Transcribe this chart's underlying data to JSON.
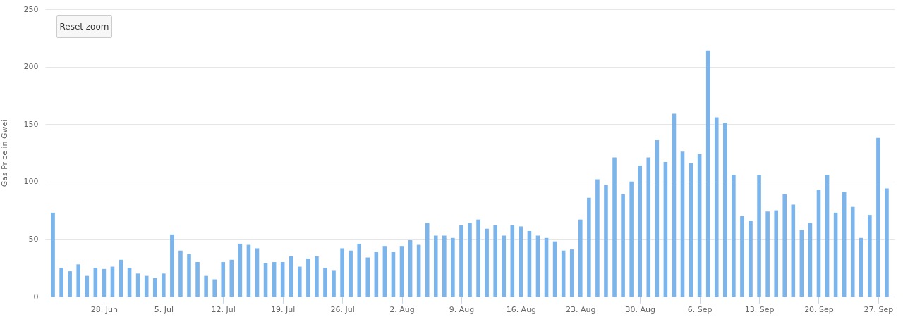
{
  "chart_data": {
    "type": "bar",
    "ylabel": "Gas Price in Gwei",
    "x": [
      "--06-22",
      "--06-23",
      "--06-24",
      "--06-25",
      "--06-26",
      "--06-27",
      "--06-28",
      "--06-29",
      "--06-30",
      "--07-01",
      "--07-02",
      "--07-03",
      "--07-04",
      "--07-05",
      "--07-06",
      "--07-07",
      "--07-08",
      "--07-09",
      "--07-10",
      "--07-11",
      "--07-12",
      "--07-13",
      "--07-14",
      "--07-15",
      "--07-16",
      "--07-17",
      "--07-18",
      "--07-19",
      "--07-20",
      "--07-21",
      "--07-22",
      "--07-23",
      "--07-24",
      "--07-25",
      "--07-26",
      "--07-27",
      "--07-28",
      "--07-29",
      "--07-30",
      "--07-31",
      "--08-01",
      "--08-02",
      "--08-03",
      "--08-04",
      "--08-05",
      "--08-06",
      "--08-07",
      "--08-08",
      "--08-09",
      "--08-10",
      "--08-11",
      "--08-12",
      "--08-13",
      "--08-14",
      "--08-15",
      "--08-16",
      "--08-17",
      "--08-18",
      "--08-19",
      "--08-20",
      "--08-21",
      "--08-22",
      "--08-23",
      "--08-24",
      "--08-25",
      "--08-26",
      "--08-27",
      "--08-28",
      "--08-29",
      "--08-30",
      "--08-31",
      "--09-01",
      "--09-02",
      "--09-03",
      "--09-04",
      "--09-05",
      "--09-06",
      "--09-07",
      "--09-08",
      "--09-09",
      "--09-10",
      "--09-11",
      "--09-12",
      "--09-13",
      "--09-14",
      "--09-15",
      "--09-16",
      "--09-17",
      "--09-18",
      "--09-19",
      "--09-20",
      "--09-21",
      "--09-22",
      "--09-23",
      "--09-24",
      "--09-25",
      "--09-26",
      "--09-27",
      "--09-28"
    ],
    "values": [
      73,
      25,
      22,
      28,
      18,
      25,
      24,
      26,
      32,
      25,
      20,
      18,
      16,
      20,
      54,
      40,
      37,
      30,
      18,
      15,
      30,
      32,
      46,
      45,
      42,
      29,
      30,
      30,
      35,
      26,
      33,
      35,
      25,
      23,
      42,
      40,
      46,
      34,
      39,
      44,
      39,
      44,
      49,
      45,
      64,
      53,
      53,
      51,
      62,
      64,
      67,
      59,
      62,
      53,
      62,
      61,
      57,
      53,
      51,
      48,
      40,
      41,
      67,
      86,
      102,
      97,
      121,
      89,
      100,
      114,
      121,
      136,
      117,
      159,
      126,
      116,
      124,
      214,
      156,
      151,
      106,
      70,
      66,
      106,
      74,
      75,
      89,
      80,
      58,
      64,
      93,
      106,
      73,
      91,
      78,
      51,
      71,
      138,
      94
    ],
    "color": "#7cb5ec",
    "xlim": [
      "--06-21T12:00",
      "--09-28T12:00"
    ],
    "xticks": [
      {
        "value": "--06-28",
        "label": "28. Jun"
      },
      {
        "value": "--07-05",
        "label": "5. Jul"
      },
      {
        "value": "--07-12",
        "label": "12. Jul"
      },
      {
        "value": "--07-19",
        "label": "19. Jul"
      },
      {
        "value": "--07-26",
        "label": "26. Jul"
      },
      {
        "value": "--08-02",
        "label": "2. Aug"
      },
      {
        "value": "--08-09",
        "label": "9. Aug"
      },
      {
        "value": "--08-16",
        "label": "16. Aug"
      },
      {
        "value": "--08-23",
        "label": "23. Aug"
      },
      {
        "value": "--08-30",
        "label": "30. Aug"
      },
      {
        "value": "--09-06",
        "label": "6. Sep"
      },
      {
        "value": "--09-13",
        "label": "13. Sep"
      },
      {
        "value": "--09-20",
        "label": "20. Sep"
      },
      {
        "value": "--09-27",
        "label": "27. Sep"
      }
    ],
    "ylim": [
      0,
      250
    ],
    "yticks": [
      0,
      50,
      100,
      150,
      200,
      250
    ],
    "grid": "y",
    "annotations": [
      "Reset zoom"
    ]
  }
}
